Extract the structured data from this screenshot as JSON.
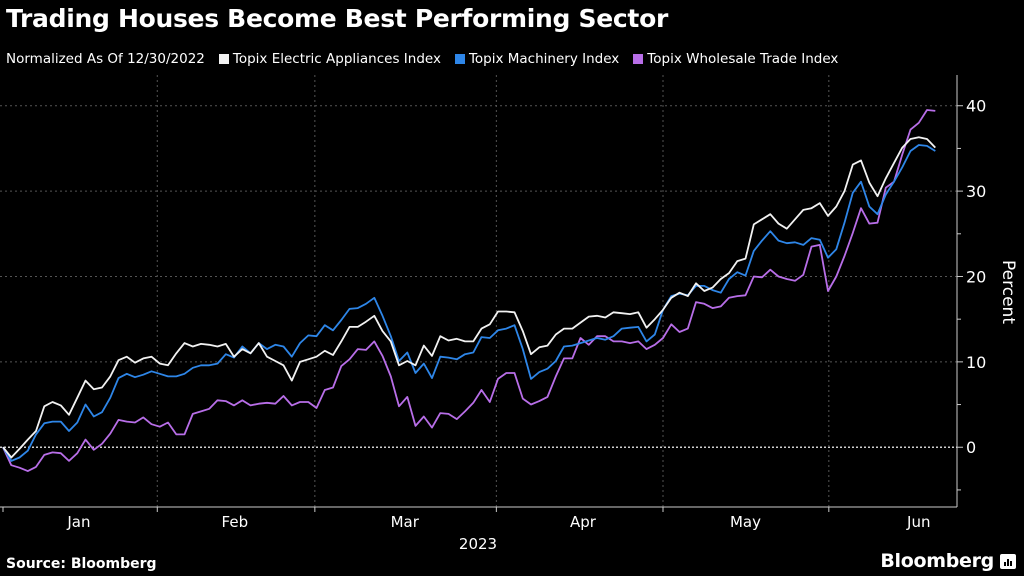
{
  "chart_data": {
    "type": "line",
    "title": "Trading Houses Become Best Performing Sector",
    "subtitle": "Normalized As Of 12/30/2022",
    "ylabel": "Percent",
    "xlabel": "2023",
    "ylim": [
      -7,
      43.6
    ],
    "yticks": [
      0,
      10,
      20,
      30,
      40
    ],
    "grid": true,
    "legend_position": "top",
    "x_unit": "trading-day index from 12/30/2022",
    "month_labels": [
      {
        "label": "Jan",
        "center": 9.2,
        "start": 0
      },
      {
        "label": "Feb",
        "center": 28.1,
        "start": 18.7
      },
      {
        "label": "Mar",
        "center": 48.7,
        "start": 37.8
      },
      {
        "label": "Apr",
        "center": 70.3,
        "start": 59.8
      },
      {
        "label": "May",
        "center": 90,
        "start": 80
      },
      {
        "label": "Jun",
        "center": 111,
        "start": 100.1
      }
    ],
    "series": [
      {
        "name": "Topix Electric Appliances Index",
        "color": "#f2f2f2",
        "values": [
          0,
          -1.2,
          -0.2,
          0.9,
          1.9,
          4.8,
          5.3,
          4.9,
          3.8,
          5.8,
          7.8,
          6.8,
          7.0,
          8.3,
          10.2,
          10.6,
          9.9,
          10.4,
          10.6,
          9.8,
          9.6,
          11.0,
          12.2,
          11.8,
          12.1,
          12.0,
          11.8,
          12.1,
          10.6,
          11.5,
          11.0,
          12.2,
          10.6,
          10.1,
          9.6,
          7.8,
          10.0,
          10.3,
          10.6,
          11.3,
          10.8,
          12.4,
          14.1,
          14.1,
          14.7,
          15.4,
          13.6,
          12.4,
          9.6,
          10.1,
          9.6,
          11.9,
          10.7,
          13.0,
          12.5,
          12.7,
          12.4,
          12.4,
          13.9,
          14.4,
          15.9,
          15.9,
          15.8,
          13.6,
          10.9,
          11.7,
          11.9,
          13.2,
          13.9,
          13.9,
          14.6,
          15.3,
          15.4,
          15.2,
          15.8,
          15.7,
          15.6,
          15.8,
          14.0,
          15.0,
          16.1,
          17.5,
          18.1,
          17.7,
          19.2,
          18.3,
          18.7,
          19.7,
          20.4,
          21.8,
          22.1,
          26.1,
          26.7,
          27.3,
          26.2,
          25.6,
          26.7,
          27.8,
          28.0,
          28.6,
          27.1,
          28.2,
          30.0,
          33.1,
          33.6,
          31.0,
          29.4,
          31.5,
          33.3,
          35.1,
          36.1,
          36.3,
          36.1,
          35.1
        ]
      },
      {
        "name": "Topix Machinery Index",
        "color": "#2e86e8",
        "values": [
          0,
          -1.6,
          -1.2,
          -0.4,
          1.5,
          2.8,
          3.0,
          3.0,
          1.9,
          2.9,
          5.0,
          3.6,
          4.1,
          5.8,
          8.1,
          8.6,
          8.2,
          8.5,
          8.9,
          8.6,
          8.3,
          8.3,
          8.6,
          9.3,
          9.6,
          9.6,
          9.8,
          10.9,
          10.5,
          11.8,
          11.0,
          12.2,
          11.5,
          12.0,
          11.8,
          10.6,
          12.2,
          13.1,
          13.0,
          14.3,
          13.7,
          14.9,
          16.2,
          16.3,
          16.8,
          17.5,
          15.4,
          13.0,
          10.1,
          11.1,
          8.7,
          9.8,
          8.1,
          10.6,
          10.5,
          10.3,
          10.9,
          11.1,
          12.9,
          12.8,
          13.7,
          13.9,
          14.3,
          11.5,
          8.0,
          8.8,
          9.2,
          10.1,
          11.8,
          11.9,
          12.2,
          12.5,
          12.8,
          12.6,
          13.0,
          13.9,
          14.0,
          14.1,
          12.4,
          13.2,
          16.1,
          17.7,
          18.0,
          17.8,
          18.9,
          18.9,
          18.4,
          18.1,
          19.7,
          20.5,
          20.1,
          23.0,
          24.2,
          25.3,
          24.2,
          23.9,
          24.0,
          23.7,
          24.5,
          24.3,
          22.2,
          23.2,
          26.3,
          29.8,
          31.1,
          28.2,
          27.3,
          29.6,
          31.1,
          32.8,
          34.7,
          35.4,
          35.3,
          34.7
        ]
      },
      {
        "name": "Topix Wholesale Trade Index",
        "color": "#b86ee8",
        "values": [
          0,
          -2.1,
          -2.4,
          -2.8,
          -2.3,
          -0.9,
          -0.6,
          -0.7,
          -1.6,
          -0.7,
          0.9,
          -0.3,
          0.4,
          1.6,
          3.2,
          3.0,
          2.9,
          3.5,
          2.7,
          2.4,
          2.9,
          1.5,
          1.5,
          3.9,
          4.2,
          4.5,
          5.5,
          5.4,
          4.9,
          5.5,
          4.9,
          5.1,
          5.2,
          5.1,
          6.0,
          4.9,
          5.3,
          5.3,
          4.6,
          6.7,
          7.0,
          9.5,
          10.3,
          11.5,
          11.4,
          12.4,
          10.7,
          8.3,
          4.8,
          5.9,
          2.5,
          3.6,
          2.3,
          4.0,
          3.9,
          3.3,
          4.2,
          5.2,
          6.7,
          5.3,
          8.0,
          8.7,
          8.7,
          5.7,
          5.0,
          5.4,
          5.9,
          8.3,
          10.4,
          10.4,
          12.8,
          12.0,
          13.0,
          13.0,
          12.4,
          12.4,
          12.2,
          12.4,
          11.5,
          12.0,
          12.8,
          14.4,
          13.5,
          13.9,
          17.0,
          16.8,
          16.3,
          16.5,
          17.5,
          17.7,
          17.8,
          20.0,
          19.9,
          20.8,
          20.0,
          19.7,
          19.5,
          20.2,
          23.5,
          23.7,
          18.3,
          20.0,
          22.4,
          25.1,
          28.0,
          26.2,
          26.3,
          30.4,
          31.1,
          34.3,
          37.2,
          38.0,
          39.5,
          39.4
        ]
      }
    ]
  },
  "footer": {
    "source": "Source: Bloomberg",
    "brand": "Bloomberg"
  }
}
